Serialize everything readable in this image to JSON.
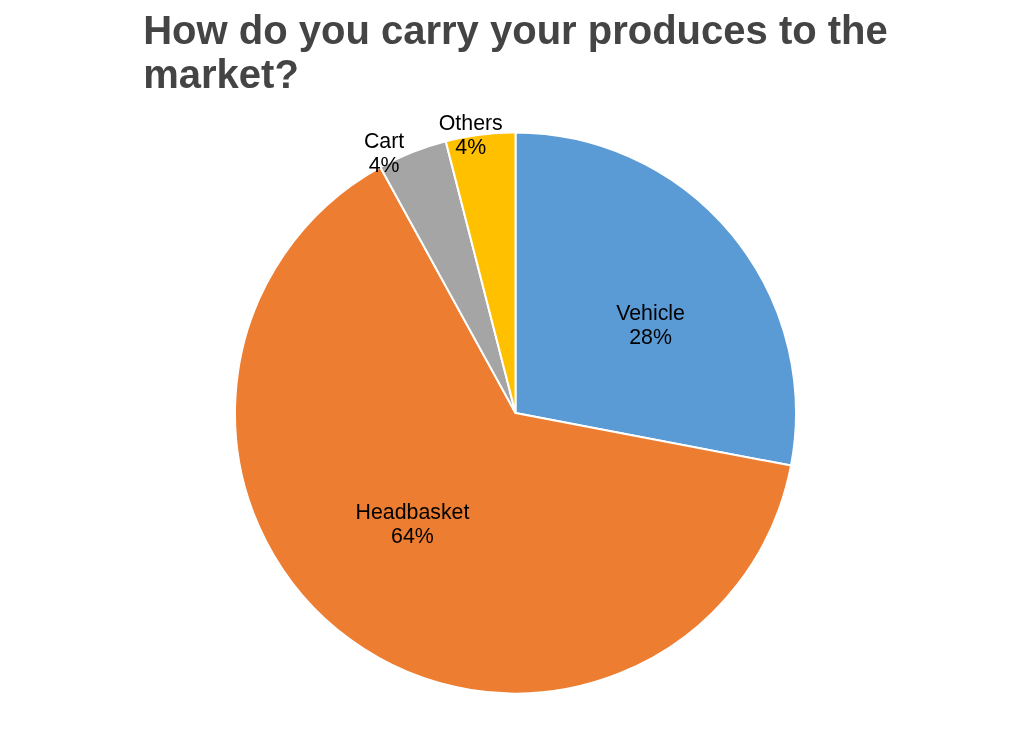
{
  "chart_data": {
    "type": "pie",
    "title": "How do you carry your produces to the market?",
    "categories": [
      "Vehicle",
      "Headbasket",
      "Cart",
      "Others"
    ],
    "values": [
      28,
      64,
      4,
      4
    ],
    "value_labels": [
      "28%",
      "64%",
      "4%",
      "4%"
    ],
    "colors": [
      "#5b9bd5",
      "#ed7d31",
      "#a5a5a5",
      "#ffc000"
    ]
  }
}
